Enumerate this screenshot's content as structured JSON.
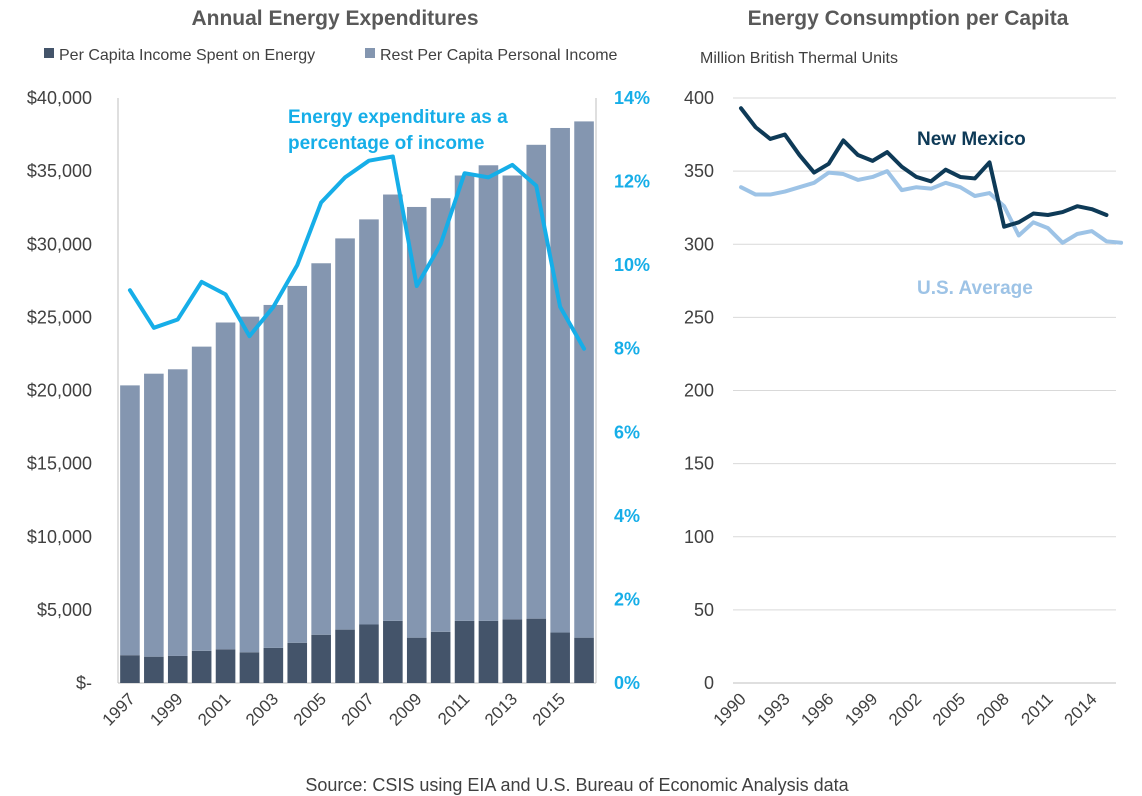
{
  "source": "Source: CSIS using EIA and U.S. Bureau of Economic Analysis data",
  "colors": {
    "energy_bar": "#44546a",
    "rest_bar": "#8496b0",
    "pct_line": "#16aee8",
    "nm_line": "#0e3a57",
    "us_line": "#9dc3e6",
    "grid": "#d9d9d9"
  },
  "chart_data": [
    {
      "type": "bar",
      "stacked": true,
      "title": "Annual Energy Expenditures",
      "x": [
        1997,
        1998,
        1999,
        2000,
        2001,
        2002,
        2003,
        2004,
        2005,
        2006,
        2007,
        2008,
        2009,
        2010,
        2011,
        2012,
        2013,
        2014,
        2015,
        2016
      ],
      "x_tick_labels": [
        "1997",
        "1999",
        "2001",
        "2003",
        "2005",
        "2007",
        "2009",
        "2011",
        "2013",
        "2015"
      ],
      "y_tick_labels": [
        "$-",
        "$5,000",
        "$10,000",
        "$15,000",
        "$20,000",
        "$25,000",
        "$30,000",
        "$35,000",
        "$40,000"
      ],
      "ylim": [
        0,
        40000
      ],
      "series": [
        {
          "name": "Per Capita Income Spent on Energy",
          "values": [
            1900,
            1800,
            1850,
            2200,
            2300,
            2100,
            2400,
            2750,
            3300,
            3650,
            4000,
            4250,
            3100,
            3500,
            4250,
            4250,
            4350,
            4400,
            3450,
            3100
          ]
        },
        {
          "name": "Rest Per Capita Personal Income",
          "values": [
            18450,
            19350,
            19600,
            20800,
            22350,
            22950,
            23450,
            24400,
            25400,
            26750,
            27700,
            29150,
            29450,
            29650,
            30450,
            31150,
            30350,
            32400,
            34500,
            35300
          ]
        }
      ],
      "line_series": {
        "annotation": "Energy expenditure as a percentage of income",
        "values": [
          9.4,
          8.5,
          8.7,
          9.6,
          9.3,
          8.3,
          9.0,
          10.0,
          11.5,
          12.1,
          12.5,
          12.6,
          9.5,
          10.5,
          12.2,
          12.1,
          12.4,
          11.9,
          9.0,
          8.0
        ],
        "y2_tick_labels": [
          "0%",
          "2%",
          "4%",
          "6%",
          "8%",
          "10%",
          "12%",
          "14%"
        ],
        "y2lim": [
          0,
          14
        ]
      },
      "grid": false,
      "legend": "top"
    },
    {
      "type": "line",
      "title": "Energy Consumption per Capita",
      "ylabel": "Million British Thermal Units",
      "x": [
        1990,
        1991,
        1992,
        1993,
        1994,
        1995,
        1996,
        1997,
        1998,
        1999,
        2000,
        2001,
        2002,
        2003,
        2004,
        2005,
        2006,
        2007,
        2008,
        2009,
        2010,
        2011,
        2012,
        2013,
        2014,
        2015,
        2016
      ],
      "x_tick_labels": [
        "1990",
        "1993",
        "1996",
        "1999",
        "2002",
        "2005",
        "2008",
        "2011",
        "2014"
      ],
      "y_tick_labels": [
        "0",
        "50",
        "100",
        "150",
        "200",
        "250",
        "300",
        "350",
        "400"
      ],
      "ylim": [
        0,
        400
      ],
      "series": [
        {
          "name": "New Mexico",
          "values": [
            393,
            380,
            372,
            375,
            361,
            349,
            355,
            371,
            361,
            357,
            363,
            353,
            346,
            343,
            351,
            346,
            345,
            356,
            312,
            315,
            321,
            320,
            322,
            326,
            324,
            320,
            null
          ]
        },
        {
          "name": "U.S. Average",
          "values": [
            339,
            334,
            334,
            336,
            339,
            342,
            349,
            348,
            344,
            346,
            350,
            337,
            339,
            338,
            342,
            339,
            333,
            335,
            326,
            306,
            315,
            311,
            301,
            307,
            309,
            302,
            301
          ]
        }
      ],
      "grid": true,
      "legend": "inline labels"
    }
  ]
}
